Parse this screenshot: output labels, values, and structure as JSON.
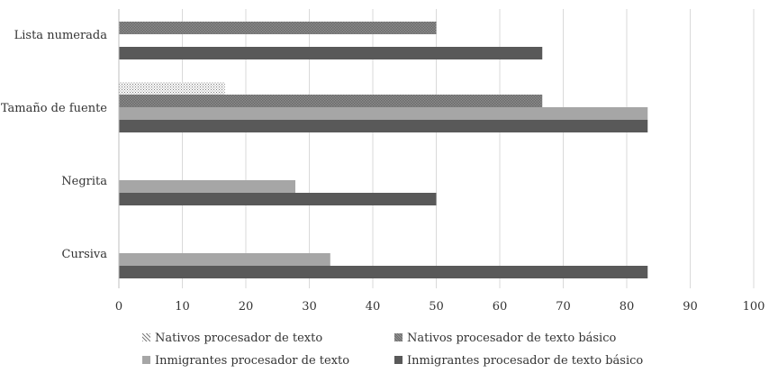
{
  "chart_data": {
    "type": "bar",
    "orientation": "horizontal",
    "categories": [
      "Lista numerada",
      "Tamaño de fuente",
      "Negrita",
      "Cursiva"
    ],
    "series": [
      {
        "name": "Nativos procesador de texto",
        "values": [
          0,
          16.7,
          0,
          0
        ],
        "pattern": "dots-light"
      },
      {
        "name": "Nativos procesador de texto básico",
        "values": [
          50,
          66.7,
          0,
          0
        ],
        "pattern": "checker-dark"
      },
      {
        "name": "Inmigrantes procesador de texto",
        "values": [
          0,
          83.3,
          27.8,
          33.3
        ],
        "color": "#a6a6a6"
      },
      {
        "name": "Inmigrantes procesador de texto básico",
        "values": [
          66.7,
          83.3,
          50,
          83.3
        ],
        "color": "#595959"
      }
    ],
    "xlim": [
      0,
      100
    ],
    "xticks": [
      0,
      10,
      20,
      30,
      40,
      50,
      60,
      70,
      80,
      90,
      100
    ],
    "grid": true,
    "legend_position": "bottom"
  }
}
